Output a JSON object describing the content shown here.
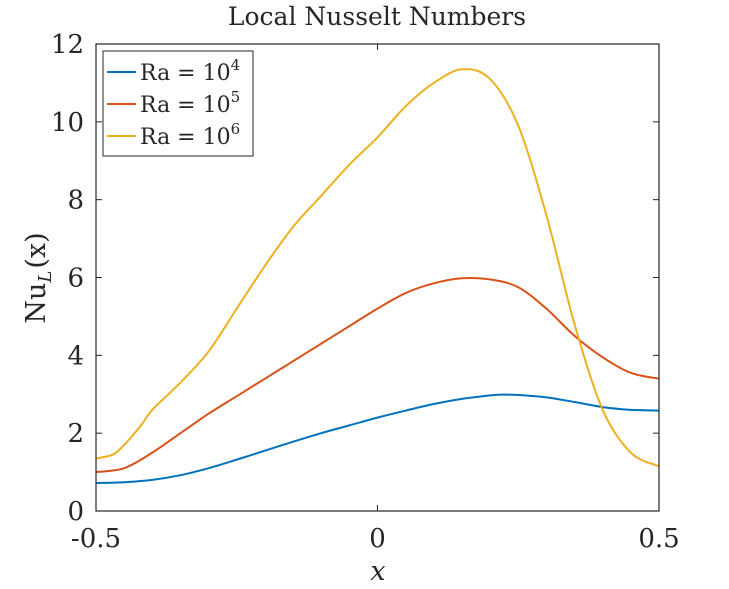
{
  "chart_data": {
    "type": "line",
    "title": "Local Nusselt Numbers",
    "xlabel": "x",
    "ylabel": {
      "base": "Nu",
      "sub": "L",
      "arg": "(x)"
    },
    "xlim": [
      -0.5,
      0.5
    ],
    "ylim": [
      0,
      12
    ],
    "xticks": [
      "-0.5",
      "0",
      "0.5"
    ],
    "yticks": [
      "0",
      "2",
      "4",
      "6",
      "8",
      "10",
      "12"
    ],
    "grid": false,
    "legend_position": "top-left",
    "series": [
      {
        "name": "Ra = 10^4",
        "label_base": "Ra = 10",
        "label_exp": "4",
        "color": "#0072BD",
        "x": [
          -0.5,
          -0.45,
          -0.4,
          -0.35,
          -0.3,
          -0.25,
          -0.2,
          -0.15,
          -0.1,
          -0.05,
          0,
          0.05,
          0.1,
          0.15,
          0.2,
          0.22,
          0.25,
          0.3,
          0.35,
          0.4,
          0.45,
          0.5
        ],
        "y": [
          0.72,
          0.74,
          0.8,
          0.92,
          1.1,
          1.32,
          1.55,
          1.78,
          2.0,
          2.2,
          2.4,
          2.58,
          2.75,
          2.88,
          2.97,
          2.99,
          2.98,
          2.92,
          2.8,
          2.67,
          2.6,
          2.58
        ]
      },
      {
        "name": "Ra = 10^5",
        "label_base": "Ra = 10",
        "label_exp": "5",
        "color": "#D95319",
        "x": [
          -0.5,
          -0.45,
          -0.4,
          -0.35,
          -0.3,
          -0.25,
          -0.2,
          -0.15,
          -0.1,
          -0.05,
          0,
          0.05,
          0.1,
          0.15,
          0.2,
          0.25,
          0.3,
          0.35,
          0.4,
          0.45,
          0.5
        ],
        "y": [
          1.0,
          1.1,
          1.5,
          2.0,
          2.5,
          2.95,
          3.4,
          3.85,
          4.3,
          4.75,
          5.2,
          5.6,
          5.85,
          5.98,
          5.95,
          5.75,
          5.2,
          4.5,
          3.95,
          3.55,
          3.4
        ]
      },
      {
        "name": "Ra = 10^6",
        "label_base": "Ra = 10",
        "label_exp": "6",
        "color": "#EDB120",
        "x": [
          -0.5,
          -0.47,
          -0.45,
          -0.42,
          -0.4,
          -0.35,
          -0.3,
          -0.25,
          -0.2,
          -0.15,
          -0.1,
          -0.05,
          0,
          0.05,
          0.1,
          0.15,
          0.2,
          0.25,
          0.3,
          0.35,
          0.4,
          0.45,
          0.5
        ],
        "y": [
          1.35,
          1.45,
          1.7,
          2.2,
          2.6,
          3.3,
          4.1,
          5.2,
          6.3,
          7.3,
          8.1,
          8.9,
          9.6,
          10.4,
          11.0,
          11.35,
          11.1,
          9.9,
          7.6,
          4.8,
          2.6,
          1.5,
          1.15
        ]
      }
    ]
  }
}
